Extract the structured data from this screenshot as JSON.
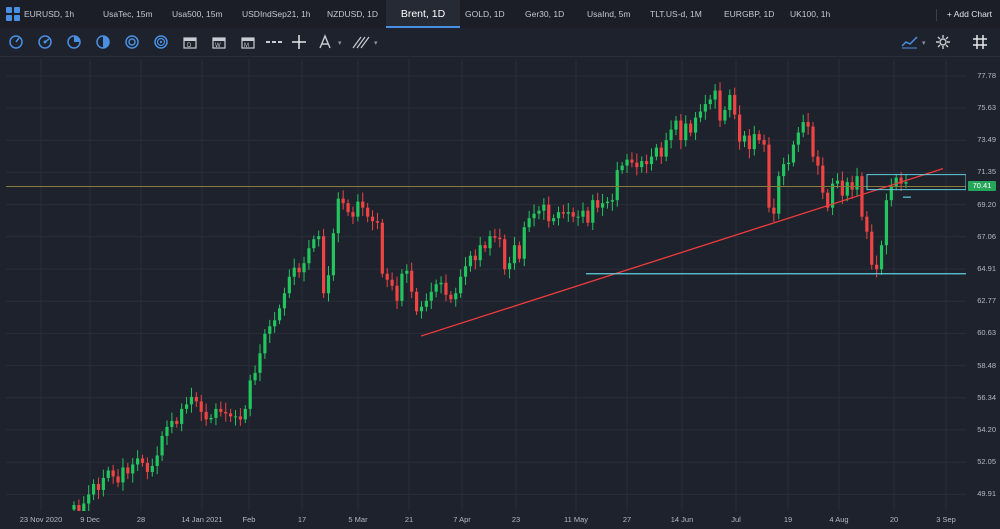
{
  "tabs": [
    {
      "label": "EURUSD, 1h",
      "active": false
    },
    {
      "label": "UsaTec, 15m",
      "active": false
    },
    {
      "label": "Usa500, 15m",
      "active": false
    },
    {
      "label": "USDIndSep21, 1h",
      "active": false
    },
    {
      "label": "NZDUSD, 1D",
      "active": false
    },
    {
      "label": "Brent, 1D",
      "active": true
    },
    {
      "label": "GOLD, 1D",
      "active": false
    },
    {
      "label": "Ger30, 1D",
      "active": false
    },
    {
      "label": "UsaInd, 5m",
      "active": false
    },
    {
      "label": "TLT.US-d, 1M",
      "active": false
    },
    {
      "label": "EURGBP, 1D",
      "active": false
    },
    {
      "label": "UK100, 1h",
      "active": false
    }
  ],
  "add_chart_label": "+ Add Chart",
  "toolbar": {
    "left_tools": [
      "crosshair-circle-icon",
      "gauge-icon",
      "pie-icon",
      "half-circle-icon",
      "target-icon",
      "rings-icon",
      "calendar-icon",
      "calendar-w-icon",
      "calendar-m-icon",
      "dashes-icon",
      "crosshair-icon",
      "letter-a-icon",
      "drawing-lines-icon"
    ],
    "right_tools": [
      "line-series-icon",
      "settings-gear-icon",
      "hash-grid-icon"
    ]
  },
  "chart_data": {
    "type": "candlestick",
    "symbol": "Brent",
    "interval": "1D",
    "y_ticks": [
      "77.78",
      "75.63",
      "73.49",
      "71.35",
      "69.20",
      "67.06",
      "64.91",
      "62.77",
      "60.63",
      "58.48",
      "56.34",
      "54.20",
      "52.05",
      "49.91"
    ],
    "ylim": [
      48.8,
      78.9
    ],
    "x_ticks": [
      "23 Nov 2020",
      "9 Dec",
      "28",
      "14 Jan 2021",
      "Feb",
      "17",
      "5 Mar",
      "21",
      "7 Apr",
      "23",
      "11 May",
      "27",
      "14 Jun",
      "Jul",
      "19",
      "4 Aug",
      "20",
      "3 Sep"
    ],
    "last_price": "70.41",
    "closes": [
      49.2,
      48.8,
      49.3,
      49.9,
      50.6,
      50.2,
      51.0,
      51.5,
      51.1,
      50.7,
      51.7,
      51.3,
      51.9,
      52.3,
      52.0,
      51.4,
      51.8,
      52.5,
      53.8,
      54.4,
      54.8,
      54.6,
      55.6,
      55.9,
      56.4,
      56.1,
      55.4,
      54.9,
      55.0,
      55.6,
      55.4,
      55.3,
      55.1,
      55.1,
      54.9,
      55.6,
      57.5,
      58.0,
      59.3,
      60.6,
      61.1,
      61.5,
      62.3,
      63.3,
      64.4,
      65.0,
      64.7,
      65.3,
      66.3,
      66.9,
      67.1,
      63.3,
      64.5,
      67.3,
      69.6,
      69.3,
      68.7,
      68.4,
      69.4,
      69.0,
      68.4,
      68.1,
      68.0,
      64.6,
      64.2,
      63.8,
      62.8,
      64.6,
      64.8,
      63.4,
      62.1,
      62.4,
      62.8,
      63.4,
      63.9,
      64.0,
      63.2,
      62.9,
      63.3,
      64.4,
      65.1,
      65.8,
      65.5,
      66.5,
      66.3,
      67.1,
      67.0,
      66.9,
      64.9,
      65.3,
      66.5,
      65.6,
      67.7,
      68.3,
      68.6,
      68.8,
      69.2,
      68.1,
      68.3,
      68.7,
      68.6,
      68.7,
      68.4,
      68.4,
      68.8,
      68.0,
      69.5,
      69.0,
      69.3,
      69.4,
      69.5,
      71.5,
      71.8,
      72.2,
      72.0,
      71.7,
      72.1,
      71.9,
      72.4,
      73.0,
      72.4,
      73.5,
      74.2,
      74.8,
      73.5,
      74.6,
      74.0,
      75.0,
      75.4,
      75.9,
      76.2,
      76.8,
      74.8,
      75.5,
      76.5,
      75.2,
      73.4,
      73.8,
      72.9,
      73.9,
      73.5,
      73.2,
      69.0,
      68.6,
      71.1,
      71.9,
      72.0,
      73.2,
      74.0,
      74.7,
      74.4,
      72.4,
      71.8,
      70.0,
      69.0,
      70.6,
      70.8,
      69.8,
      70.7,
      70.2,
      71.1,
      68.4,
      67.4,
      65.2,
      64.9,
      66.5,
      69.5,
      70.4,
      71.0,
      70.6,
      70.7
    ]
  }
}
